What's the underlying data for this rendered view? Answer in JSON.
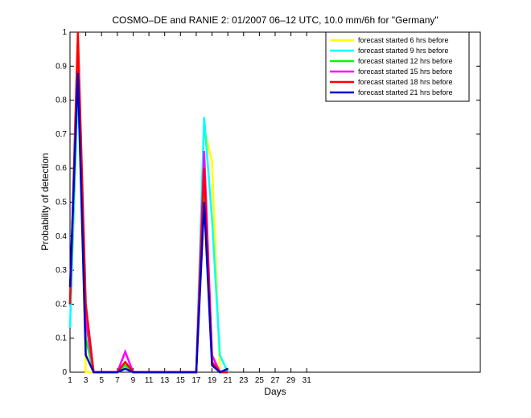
{
  "chart_data": {
    "type": "line",
    "title": "COSMO–DE and RANIE 2: 01/2007 06–12 UTC, 10.0 mm/6h for \"Germany\"",
    "xlabel": "Days",
    "ylabel": "Probability of detection",
    "x": [
      1,
      2,
      3,
      4,
      5,
      6,
      7,
      8,
      9,
      10,
      11,
      12,
      13,
      14,
      15,
      16,
      17,
      18,
      19,
      20,
      21,
      22,
      23,
      24,
      25,
      26,
      27,
      28,
      29,
      30,
      31
    ],
    "xlim": [
      1,
      53
    ],
    "xticks": [
      1,
      3,
      5,
      7,
      9,
      11,
      13,
      15,
      17,
      19,
      21,
      23,
      25,
      27,
      29,
      31
    ],
    "ylim": [
      0,
      1
    ],
    "yticks": [
      0,
      0.1,
      0.2,
      0.3,
      0.4,
      0.5,
      0.6,
      0.7,
      0.8,
      0.9,
      1
    ],
    "series": [
      {
        "name": "forecast started 6 hrs before",
        "color": "#ffff00",
        "values": [
          0.2,
          0.9,
          0,
          0,
          0,
          0,
          0,
          0.02,
          0,
          0,
          0,
          0,
          0,
          0,
          0,
          0,
          0,
          0.72,
          0.62,
          0,
          0,
          null,
          null,
          null,
          null,
          null,
          null,
          null,
          null,
          null,
          null
        ]
      },
      {
        "name": "forecast started 9 hrs before",
        "color": "#00ffff",
        "values": [
          0.13,
          0.85,
          0.1,
          0,
          0,
          0,
          0,
          0.01,
          0,
          0,
          0,
          0,
          0,
          0,
          0,
          0,
          0,
          0.75,
          0.45,
          0.05,
          0,
          null,
          null,
          null,
          null,
          null,
          null,
          null,
          null,
          null,
          null
        ]
      },
      {
        "name": "forecast started 12 hrs before",
        "color": "#00ff00",
        "values": [
          0.2,
          0.9,
          0.1,
          0,
          0,
          0,
          0,
          0.02,
          0,
          0,
          0,
          0,
          0,
          0,
          0,
          0,
          0,
          0.55,
          0.05,
          0,
          0,
          null,
          null,
          null,
          null,
          null,
          null,
          null,
          null,
          null,
          null
        ]
      },
      {
        "name": "forecast started 15 hrs before",
        "color": "#ff00ff",
        "values": [
          0.2,
          0.95,
          0.15,
          0,
          0,
          0,
          0,
          0.06,
          0,
          0,
          0,
          0,
          0,
          0,
          0,
          0,
          0,
          0.65,
          0.05,
          0,
          0,
          null,
          null,
          null,
          null,
          null,
          null,
          null,
          null,
          null,
          null
        ]
      },
      {
        "name": "forecast started 18 hrs before",
        "color": "#ff0000",
        "values": [
          0.2,
          1,
          0.2,
          0,
          0,
          0,
          0,
          0.03,
          0,
          0,
          0,
          0,
          0,
          0,
          0,
          0,
          0,
          0.6,
          0.03,
          0,
          0,
          null,
          null,
          null,
          null,
          null,
          null,
          null,
          null,
          null,
          null
        ]
      },
      {
        "name": "forecast started 21 hrs before",
        "color": "#0000cc",
        "values": [
          0.25,
          0.88,
          0.05,
          0,
          0,
          0,
          0,
          0.01,
          0,
          0,
          0,
          0,
          0,
          0,
          0,
          0,
          0,
          0.5,
          0.02,
          0,
          0.01,
          null,
          null,
          null,
          null,
          null,
          null,
          null,
          null,
          null,
          null
        ]
      }
    ]
  }
}
